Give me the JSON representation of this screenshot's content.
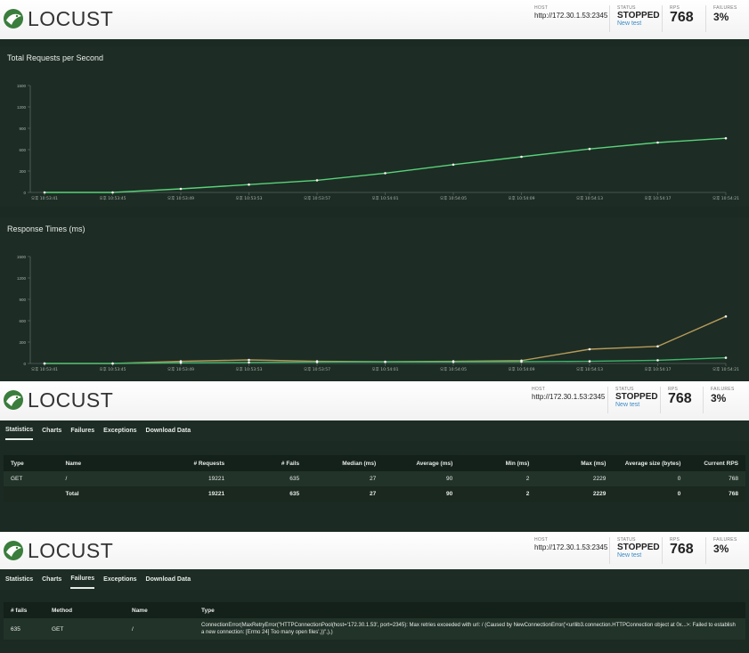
{
  "app": {
    "logo_text": "LOCUST",
    "host_label": "HOST",
    "host_value": "http://172.30.1.53:2345",
    "status_label": "STATUS",
    "status_value": "STOPPED",
    "new_test_label": "New test",
    "rps_label": "RPS",
    "rps_value": "768",
    "failures_label": "FAILURES",
    "failures_value": "3%"
  },
  "tabs": [
    "Statistics",
    "Charts",
    "Failures",
    "Exceptions",
    "Download Data"
  ],
  "chart_data": [
    {
      "type": "line",
      "title": "Total Requests per Second",
      "x": [
        "오후 10:53:41",
        "오후 10:53:45",
        "오후 10:53:49",
        "오후 10:53:53",
        "오후 10:53:57",
        "오후 10:54:01",
        "오후 10:54:05",
        "오후 10:54:09",
        "오후 10:54:13",
        "오후 10:54:17",
        "오후 10:54:21"
      ],
      "ylim": [
        0,
        1500
      ],
      "yticks": [
        "1500",
        "1200",
        "900",
        "600",
        "300",
        "0"
      ],
      "series": [
        {
          "color": "#59d27a",
          "values": [
            0,
            0,
            50,
            110,
            170,
            270,
            390,
            500,
            610,
            700,
            760
          ]
        }
      ]
    },
    {
      "type": "line",
      "title": "Response Times (ms)",
      "x": [
        "오후 10:53:41",
        "오후 10:53:45",
        "오후 10:53:49",
        "오후 10:53:53",
        "오후 10:53:57",
        "오후 10:54:01",
        "오후 10:54:05",
        "오후 10:54:09",
        "오후 10:54:13",
        "오후 10:54:17",
        "오후 10:54:21"
      ],
      "ylim": [
        0,
        1500
      ],
      "yticks": [
        "1500",
        "1200",
        "900",
        "600",
        "300",
        "0"
      ],
      "series": [
        {
          "color": "#b59a5a",
          "values": [
            0,
            0,
            30,
            50,
            30,
            25,
            30,
            40,
            200,
            240,
            660
          ]
        },
        {
          "color": "#3fb56b",
          "values": [
            0,
            0,
            10,
            15,
            20,
            22,
            22,
            25,
            30,
            45,
            80
          ]
        }
      ]
    }
  ],
  "stats": {
    "headers": [
      "Type",
      "Name",
      "# Requests",
      "# Fails",
      "Median (ms)",
      "Average (ms)",
      "Min (ms)",
      "Max (ms)",
      "Average size (bytes)",
      "Current RPS"
    ],
    "rows": [
      [
        "GET",
        "/",
        "19221",
        "635",
        "27",
        "90",
        "2",
        "2229",
        "0",
        "768"
      ],
      [
        "",
        "Total",
        "19221",
        "635",
        "27",
        "90",
        "2",
        "2229",
        "0",
        "768"
      ]
    ]
  },
  "failures": {
    "headers": [
      "# fails",
      "Method",
      "Name",
      "Type"
    ],
    "rows": [
      [
        "635",
        "GET",
        "/",
        "ConnectionError(MaxRetryError(\"HTTPConnectionPool(host='172.30.1.53', port=2345): Max retries exceeded with url: / (Caused by NewConnectionError('<urllib3.connection.HTTPConnection object at 0x...>: Failed to establish a new connection: [Errno 24] Too many open files',))\",),)"
      ]
    ]
  }
}
